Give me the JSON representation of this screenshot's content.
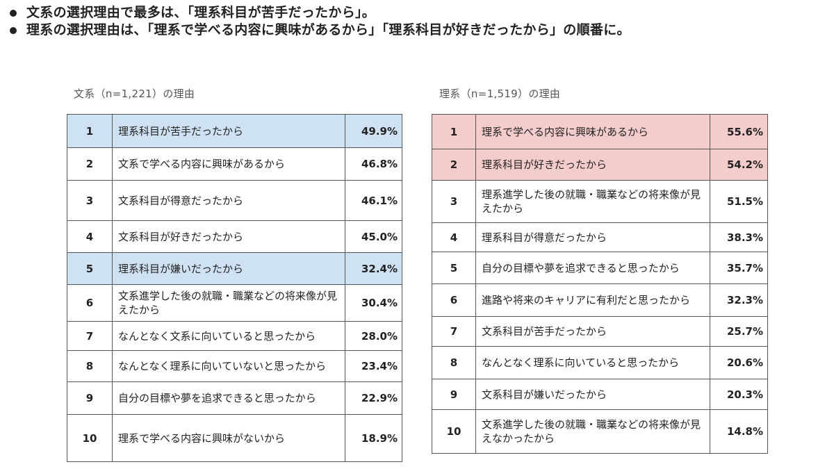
{
  "bullets": [
    "文系の選択理由で最多は、「理系科目が苦手だったから」。",
    "理系の選択理由は、「理系で学べる内容に興味があるから」「理系科目が好きだったから」の順番に。"
  ],
  "left_table": {
    "caption": "文系（n=1,221）の理由",
    "rows": [
      {
        "rank": "1",
        "reason": "理系科目が苦手だったから",
        "percent": "49.9%",
        "highlight": "blue"
      },
      {
        "rank": "2",
        "reason": "文系で学べる内容に興味があるから",
        "percent": "46.8%",
        "highlight": ""
      },
      {
        "rank": "3",
        "reason": "文系科目が得意だったから",
        "percent": "46.1%",
        "highlight": ""
      },
      {
        "rank": "4",
        "reason": "文系科目が好きだったから",
        "percent": "45.0%",
        "highlight": ""
      },
      {
        "rank": "5",
        "reason": "理系科目が嫌いだったから",
        "percent": "32.4%",
        "highlight": "blue"
      },
      {
        "rank": "6",
        "reason": "文系進学した後の就職・職業などの将来像が見えたから",
        "percent": "30.4%",
        "highlight": ""
      },
      {
        "rank": "7",
        "reason": "なんとなく文系に向いていると思ったから",
        "percent": "28.0%",
        "highlight": ""
      },
      {
        "rank": "8",
        "reason": "なんとなく理系に向いていないと思ったから",
        "percent": "23.4%",
        "highlight": ""
      },
      {
        "rank": "9",
        "reason": "自分の目標や夢を追求できると思ったから",
        "percent": "22.9%",
        "highlight": ""
      },
      {
        "rank": "10",
        "reason": "理系で学べる内容に興味がないから",
        "percent": "18.9%",
        "highlight": ""
      }
    ]
  },
  "right_table": {
    "caption": "理系（n=1,519）の理由",
    "rows": [
      {
        "rank": "1",
        "reason": "理系で学べる内容に興味があるから",
        "percent": "55.6%",
        "highlight": "pink"
      },
      {
        "rank": "2",
        "reason": "理系科目が好きだったから",
        "percent": "54.2%",
        "highlight": "pink"
      },
      {
        "rank": "3",
        "reason": "理系進学した後の就職・職業などの将来像が見えたから",
        "percent": "51.5%",
        "highlight": ""
      },
      {
        "rank": "4",
        "reason": "理系科目が得意だったから",
        "percent": "38.3%",
        "highlight": ""
      },
      {
        "rank": "5",
        "reason": "自分の目標や夢を追求できると思ったから",
        "percent": "35.7%",
        "highlight": ""
      },
      {
        "rank": "6",
        "reason": "進路や将来のキャリアに有利だと思ったから",
        "percent": "32.3%",
        "highlight": ""
      },
      {
        "rank": "7",
        "reason": "文系科目が苦手だったから",
        "percent": "25.7%",
        "highlight": ""
      },
      {
        "rank": "8",
        "reason": "なんとなく理系に向いていると思ったから",
        "percent": "20.6%",
        "highlight": ""
      },
      {
        "rank": "9",
        "reason": "文系科目が嫌いだったから",
        "percent": "20.3%",
        "highlight": ""
      },
      {
        "rank": "10",
        "reason": "文系進学した後の就職・職業などの将来像が見えなかったから",
        "percent": "14.8%",
        "highlight": ""
      }
    ]
  },
  "colors": {
    "blue_highlight": "#cfe2f3",
    "pink_highlight": "#f4cccc",
    "border": "#555555"
  }
}
